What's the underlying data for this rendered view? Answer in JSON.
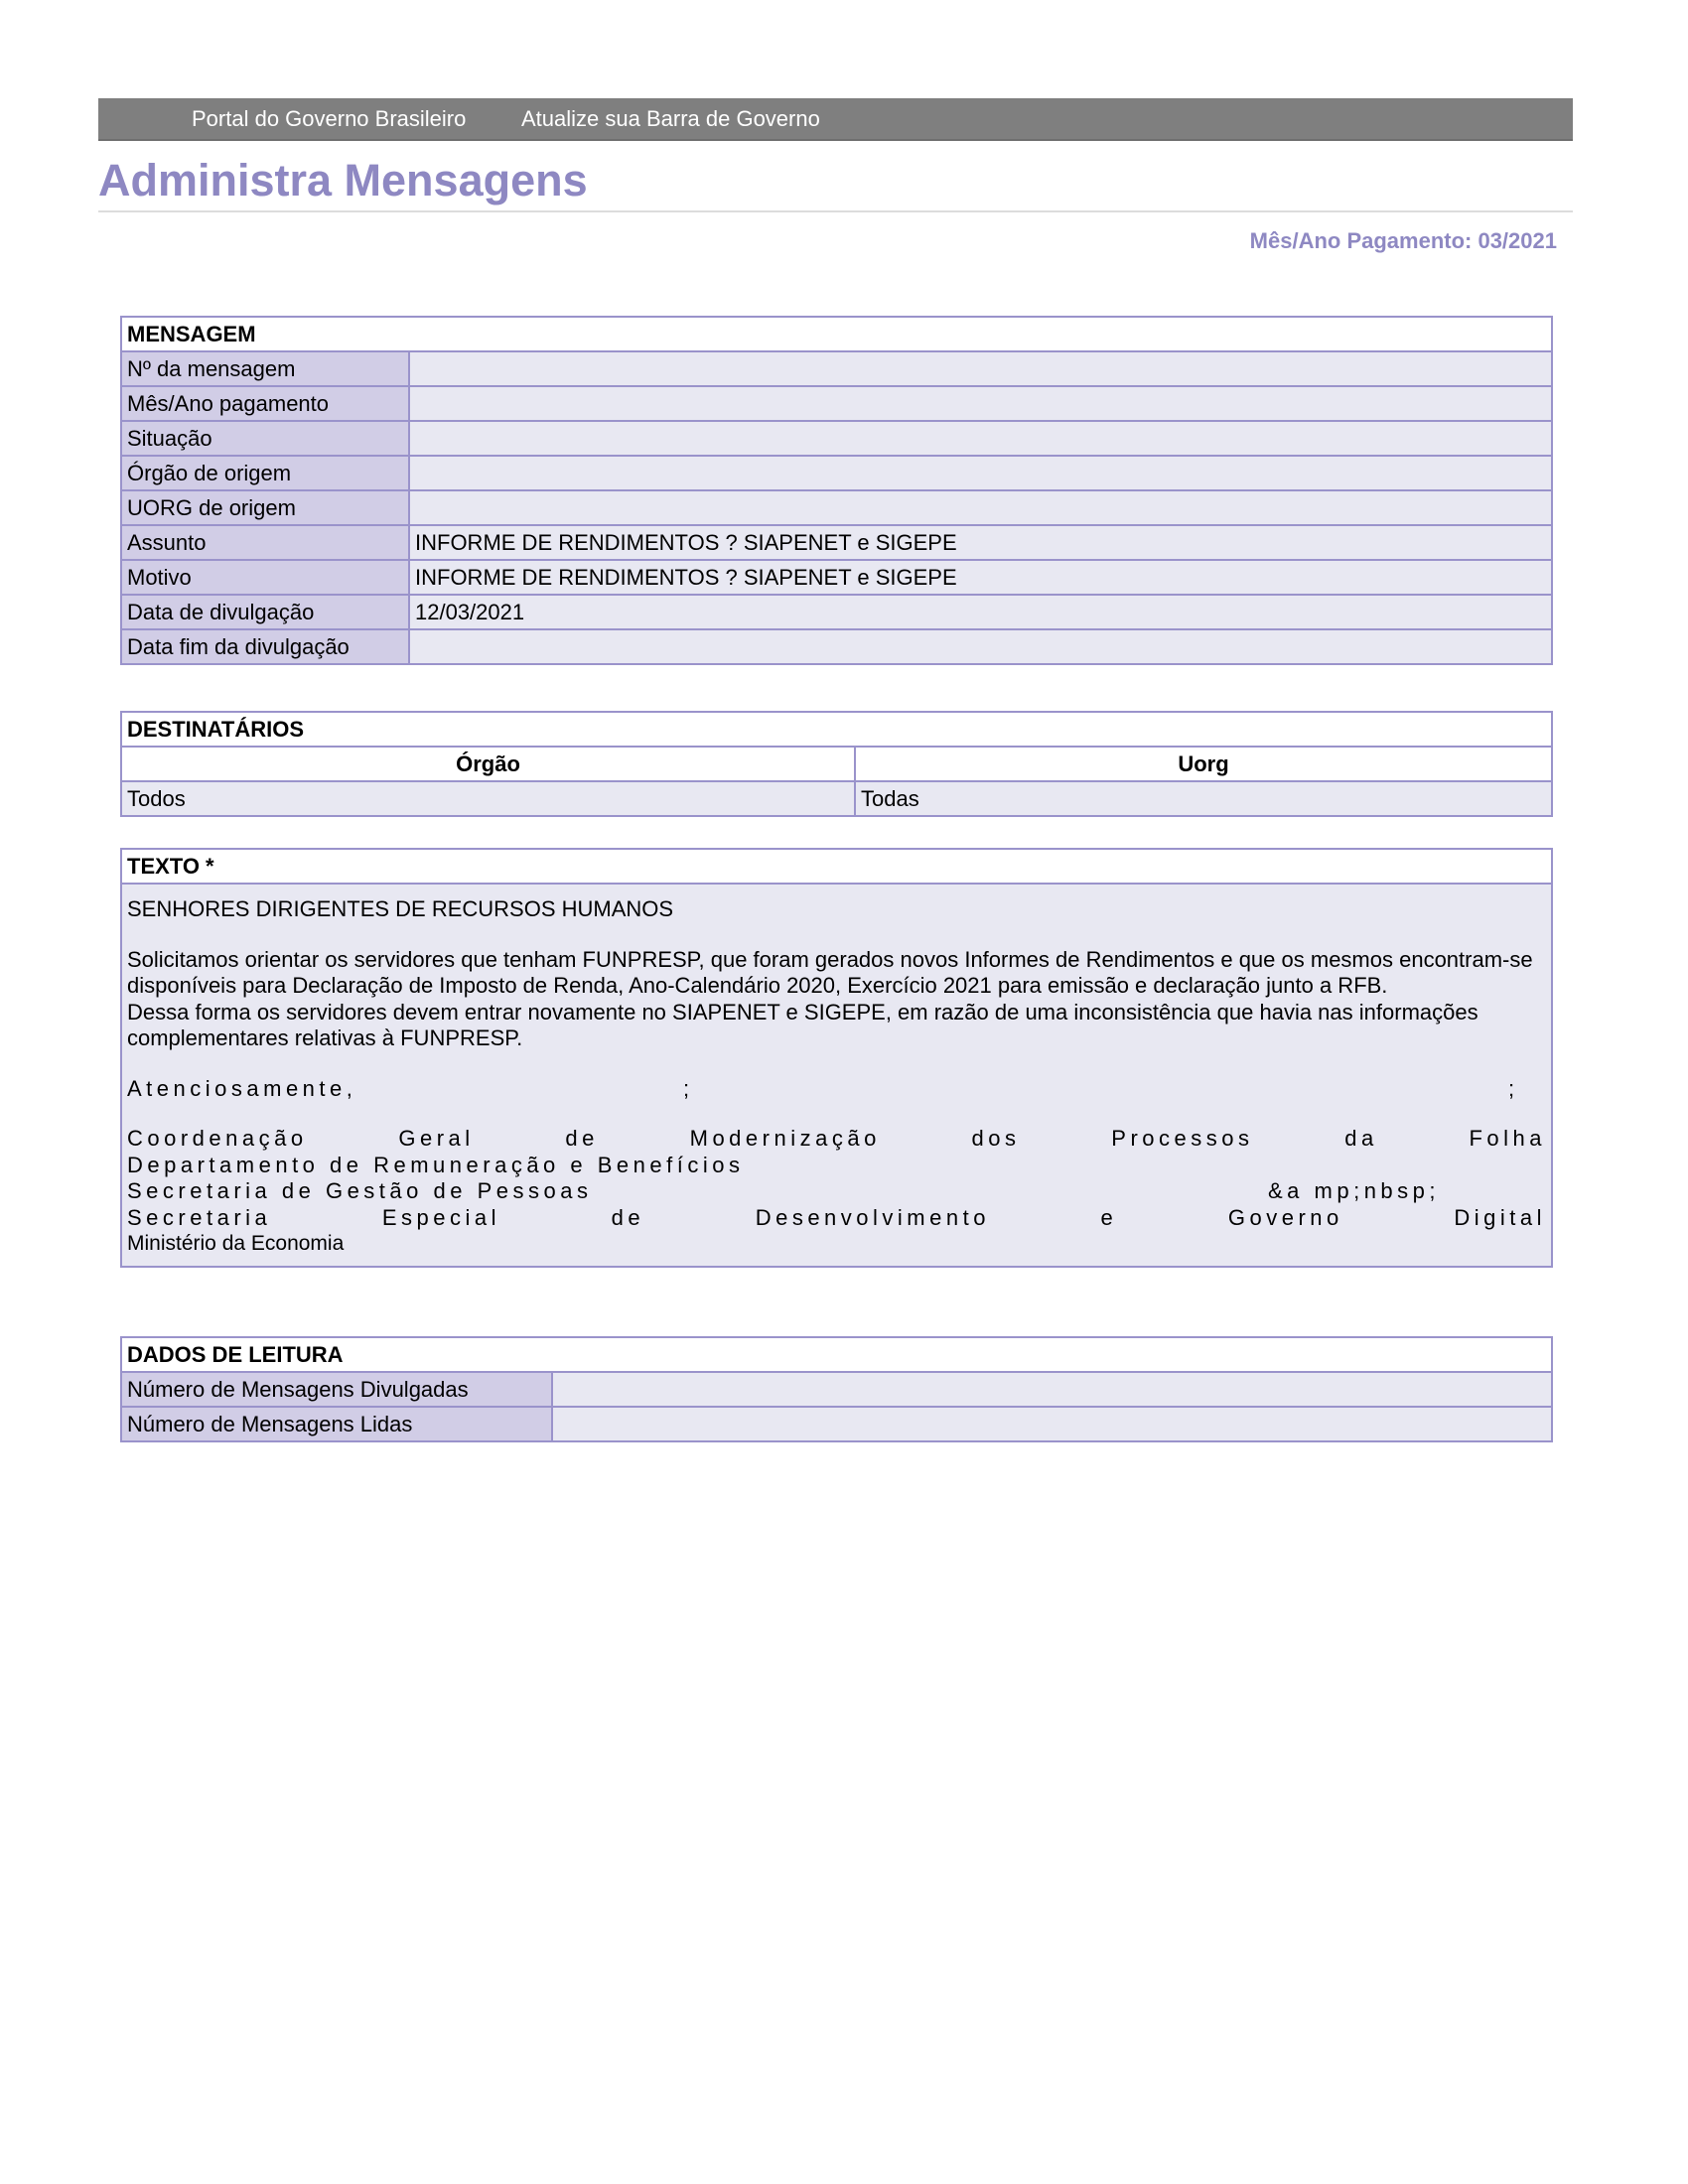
{
  "govbar": {
    "portal": "Portal do Governo Brasileiro",
    "update": "Atualize sua Barra de Governo"
  },
  "page_title": "Administra Mensagens",
  "period": "Mês/Ano Pagamento: 03/2021",
  "mensagem": {
    "header": "MENSAGEM",
    "rows": [
      {
        "label": "Nº da mensagem",
        "value": ""
      },
      {
        "label": "Mês/Ano pagamento",
        "value": ""
      },
      {
        "label": "Situação",
        "value": ""
      },
      {
        "label": "Órgão de origem",
        "value": ""
      },
      {
        "label": "UORG de origem",
        "value": ""
      },
      {
        "label": "Assunto",
        "value": "INFORME DE RENDIMENTOS ? SIAPENET e SIGEPE"
      },
      {
        "label": "Motivo",
        "value": "INFORME DE RENDIMENTOS ? SIAPENET e SIGEPE"
      },
      {
        "label": "Data de divulgação",
        "value": "12/03/2021"
      },
      {
        "label": "Data fim da divulgação",
        "value": ""
      }
    ]
  },
  "destinatarios": {
    "header": "DESTINATÁRIOS",
    "columns": [
      "Órgão",
      "Uorg"
    ],
    "rows": [
      [
        "Todos",
        "Todas"
      ]
    ]
  },
  "texto": {
    "header": "TEXTO *",
    "greeting": "SENHORES DIRIGENTES DE RECURSOS HUMANOS",
    "paragraph1": "Solicitamos orientar os servidores que tenham FUNPRESP, que foram gerados novos Informes de Rendimentos e que os mesmos encontram-se disponíveis  para Declaração de Imposto de Renda, Ano-Calendário 2020, Exercício 2021 para emissão e declaração junto a RFB.",
    "paragraph2": "Dessa forma os servidores devem entrar novamente no SIAPENET e SIGEPE, em razão de uma inconsistência que havia nas informações complementares relativas à FUNPRESP.",
    "closing": [
      "Atenciosamente,",
      ";",
      ";"
    ],
    "signature": {
      "line1": "Coordenação Geral de Modernização dos Processos da Folha",
      "line2": "Departamento de Remuneração e Benefícios",
      "line3": [
        "Secretaria de Gestão de Pessoas",
        "&a mp;nbsp;"
      ],
      "line4": "Secretaria Especial de Desenvolvimento e Governo Digital",
      "line5": "Ministério da Economia"
    }
  },
  "leitura": {
    "header": "DADOS DE LEITURA",
    "rows": [
      {
        "label": "Número de Mensagens Divulgadas",
        "value": ""
      },
      {
        "label": "Número de Mensagens Lidas",
        "value": ""
      }
    ]
  },
  "colors": {
    "accent": "#8e88c2",
    "border": "#9a93cb",
    "label_bg": "#d1cde6",
    "value_bg": "#e8e8f2",
    "govbar": "#7f7f7f"
  }
}
